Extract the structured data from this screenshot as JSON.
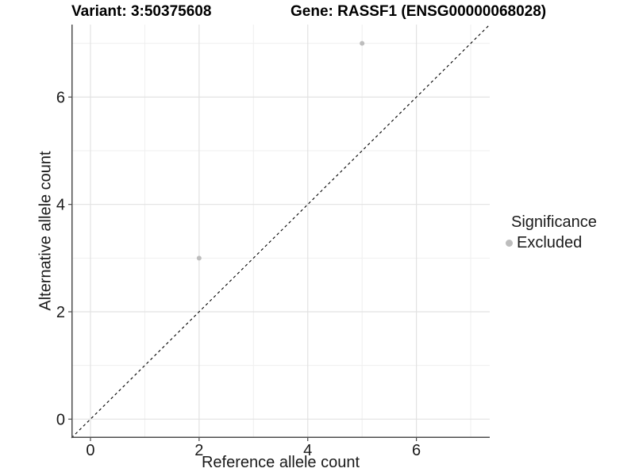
{
  "header": {
    "variant_title": "Variant: 3:50375608",
    "gene_title": "Gene: RASSF1 (ENSG00000068028)"
  },
  "chart_data": {
    "type": "scatter",
    "title_left": "Variant: 3:50375608",
    "title_right": "Gene: RASSF1 (ENSG00000068028)",
    "xlabel": "Reference allele count",
    "ylabel": "Alternative allele count",
    "xlim": [
      -0.35,
      7.35
    ],
    "ylim": [
      -0.35,
      7.35
    ],
    "xticks": [
      0,
      2,
      4,
      6
    ],
    "yticks": [
      0,
      2,
      4,
      6
    ],
    "x_minor_gridlines": [
      1,
      3,
      5,
      7
    ],
    "y_minor_gridlines": [
      1,
      3,
      5,
      7
    ],
    "grid": "on",
    "legend_position": "right",
    "identity_line": {
      "equation": "y = x",
      "style": "dashed",
      "color": "#000000"
    },
    "series": [
      {
        "name": "Excluded",
        "color": "#bdbdbd",
        "points": [
          {
            "x": 2,
            "y": 3
          },
          {
            "x": 5,
            "y": 7
          }
        ]
      }
    ],
    "legend": {
      "title": "Significance",
      "items": [
        {
          "label": "Excluded",
          "color": "#bdbdbd"
        }
      ]
    }
  },
  "colors": {
    "major_grid": "#e2e2e2",
    "minor_grid": "#efefef",
    "axis_line": "#4d4d4d",
    "tick_mark": "#4d4d4d",
    "point": "#bdbdbd",
    "identity_line": "#000000"
  }
}
